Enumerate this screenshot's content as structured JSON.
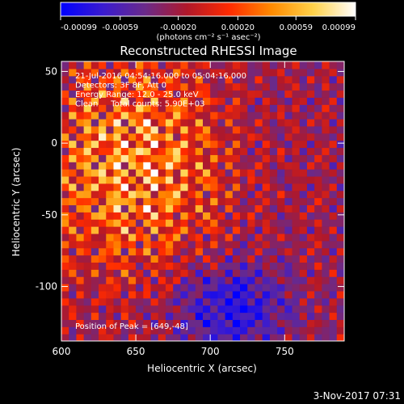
{
  "colorbar": {
    "ticks": [
      "-0.00099",
      "-0.00059",
      "-0.00020",
      "0.00020",
      "0.00059",
      "0.00099"
    ],
    "tick_values": [
      -0.00099,
      -0.00059,
      -0.0002,
      0.0002,
      0.00059,
      0.00099
    ],
    "range": [
      -0.00099,
      0.00099
    ],
    "unit_label": "(photons cm⁻² s⁻¹ asec⁻²)",
    "colors": [
      "#0000ff",
      "#3a1bd0",
      "#6a2a8a",
      "#b0182a",
      "#ff2a00",
      "#ff8a00",
      "#ffd24a",
      "#ffffff"
    ]
  },
  "chart_data": {
    "type": "heatmap",
    "title": "Reconstructed RHESSI Image",
    "xlabel": "Heliocentric X (arcsec)",
    "ylabel": "Heliocentric Y (arcsec)",
    "xlim": [
      600,
      790
    ],
    "ylim": [
      -138,
      57
    ],
    "xticks": [
      600,
      650,
      700,
      750
    ],
    "yticks": [
      -100,
      -50,
      0,
      50
    ],
    "value_range": [
      -0.00099,
      0.00099
    ],
    "bright_region": {
      "x_range": [
        600,
        690
      ],
      "y_range": [
        -70,
        40
      ]
    },
    "dark_region": {
      "x_range": [
        690,
        740
      ],
      "y_range": [
        -138,
        -90
      ]
    },
    "info_lines": [
      "21-Jul-2016 04:54:16.000 to 05:04:16.000",
      "Detectors: 3F 8F, Att 0",
      "Energy Range: 12.0 - 25.0 keV",
      "Clean     Total counts: 5.90E+03"
    ],
    "peak_label": "Position of Peak = [649,-48]",
    "peak": [
      649,
      -48
    ]
  },
  "footer": {
    "date": "3-Nov-2017 07:31"
  }
}
